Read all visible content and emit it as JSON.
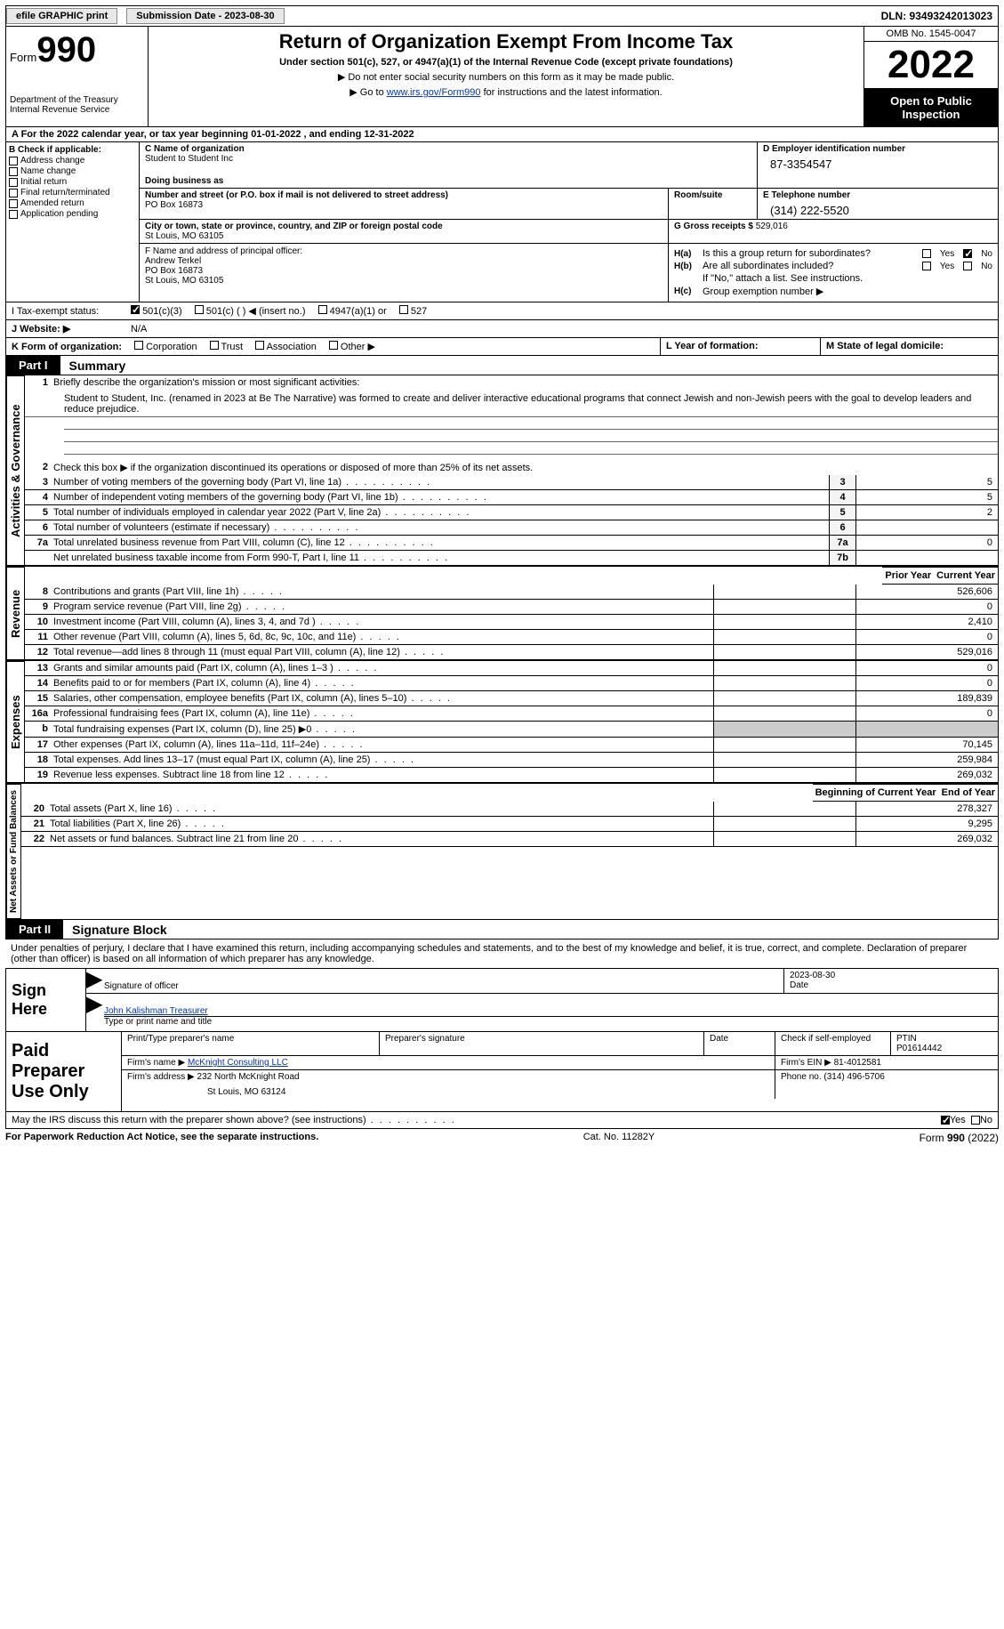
{
  "topbar": {
    "efile": "efile GRAPHIC print",
    "subdate_lbl": "Submission Date - 2023-08-30",
    "dln": "DLN: 93493242013023"
  },
  "header": {
    "form_prefix": "Form",
    "form_num": "990",
    "dept": "Department of the Treasury",
    "irs": "Internal Revenue Service",
    "title": "Return of Organization Exempt From Income Tax",
    "subtitle": "Under section 501(c), 527, or 4947(a)(1) of the Internal Revenue Code (except private foundations)",
    "note1": "▶ Do not enter social security numbers on this form as it may be made public.",
    "note2_pre": "▶ Go to ",
    "note2_link": "www.irs.gov/Form990",
    "note2_post": " for instructions and the latest information.",
    "omb": "OMB No. 1545-0047",
    "year": "2022",
    "open": "Open to Public Inspection"
  },
  "taxyear": "A For the 2022 calendar year, or tax year beginning 01-01-2022    , and ending 12-31-2022",
  "b": {
    "hdr": "B Check if applicable:",
    "items": [
      "Address change",
      "Name change",
      "Initial return",
      "Final return/terminated",
      "Amended return",
      "Application pending"
    ]
  },
  "c": {
    "name_lbl": "C Name of organization",
    "name": "Student to Student Inc",
    "dba_lbl": "Doing business as",
    "addr_lbl": "Number and street (or P.O. box if mail is not delivered to street address)",
    "addr": "PO Box 16873",
    "room_lbl": "Room/suite",
    "city_lbl": "City or town, state or province, country, and ZIP or foreign postal code",
    "city": "St Louis, MO  63105"
  },
  "d": {
    "lbl": "D Employer identification number",
    "val": "87-3354547"
  },
  "e": {
    "lbl": "E Telephone number",
    "val": "(314) 222-5520"
  },
  "g": {
    "lbl": "G Gross receipts $",
    "val": "529,016"
  },
  "f": {
    "lbl": "F Name and address of principal officer:",
    "name": "Andrew Terkel",
    "addr1": "PO Box 16873",
    "addr2": "St Louis, MO  63105"
  },
  "h": {
    "a_lbl": "H(a)",
    "a_txt": "Is this a group return for subordinates?",
    "b_lbl": "H(b)",
    "b_txt": "Are all subordinates included?",
    "b_note": "If \"No,\" attach a list. See instructions.",
    "c_lbl": "H(c)",
    "c_txt": "Group exemption number ▶",
    "yes": "Yes",
    "no": "No"
  },
  "i": {
    "lbl": "I  Tax-exempt status:",
    "opts": [
      "501(c)(3)",
      "501(c) (  ) ◀ (insert no.)",
      "4947(a)(1) or",
      "527"
    ]
  },
  "j": {
    "lbl": "J  Website: ▶",
    "val": "N/A"
  },
  "k": {
    "lbl": "K Form of organization:",
    "opts": [
      "Corporation",
      "Trust",
      "Association",
      "Other ▶"
    ]
  },
  "l": {
    "lbl": "L Year of formation:"
  },
  "m": {
    "lbl": "M State of legal domicile:"
  },
  "part1": {
    "hdr": "Part I",
    "title": "Summary",
    "line1_lbl": "Briefly describe the organization's mission or most significant activities:",
    "line1_txt": "Student to Student, Inc. (renamed in 2023 at Be The Narrative) was formed to create and deliver interactive educational programs that connect Jewish and non-Jewish peers with the goal to develop leaders and reduce prejudice.",
    "line2": "Check this box ▶           if the organization discontinued its operations or disposed of more than 25% of its net assets.",
    "lines_top": [
      {
        "n": "3",
        "d": "Number of voting members of the governing body (Part VI, line 1a)",
        "box": "3",
        "v": "5"
      },
      {
        "n": "4",
        "d": "Number of independent voting members of the governing body (Part VI, line 1b)",
        "box": "4",
        "v": "5"
      },
      {
        "n": "5",
        "d": "Total number of individuals employed in calendar year 2022 (Part V, line 2a)",
        "box": "5",
        "v": "2"
      },
      {
        "n": "6",
        "d": "Total number of volunteers (estimate if necessary)",
        "box": "6",
        "v": ""
      },
      {
        "n": "7a",
        "d": "Total unrelated business revenue from Part VIII, column (C), line 12",
        "box": "7a",
        "v": "0"
      },
      {
        "n": "",
        "d": "Net unrelated business taxable income from Form 990-T, Part I, line 11",
        "box": "7b",
        "v": ""
      }
    ],
    "prior": "Prior Year",
    "current": "Current Year",
    "revenue": [
      {
        "n": "8",
        "d": "Contributions and grants (Part VIII, line 1h)",
        "v2": "526,606"
      },
      {
        "n": "9",
        "d": "Program service revenue (Part VIII, line 2g)",
        "v2": "0"
      },
      {
        "n": "10",
        "d": "Investment income (Part VIII, column (A), lines 3, 4, and 7d )",
        "v2": "2,410"
      },
      {
        "n": "11",
        "d": "Other revenue (Part VIII, column (A), lines 5, 6d, 8c, 9c, 10c, and 11e)",
        "v2": "0"
      },
      {
        "n": "12",
        "d": "Total revenue—add lines 8 through 11 (must equal Part VIII, column (A), line 12)",
        "v2": "529,016"
      }
    ],
    "expenses": [
      {
        "n": "13",
        "d": "Grants and similar amounts paid (Part IX, column (A), lines 1–3 )",
        "v2": "0"
      },
      {
        "n": "14",
        "d": "Benefits paid to or for members (Part IX, column (A), line 4)",
        "v2": "0"
      },
      {
        "n": "15",
        "d": "Salaries, other compensation, employee benefits (Part IX, column (A), lines 5–10)",
        "v2": "189,839"
      },
      {
        "n": "16a",
        "d": "Professional fundraising fees (Part IX, column (A), line 11e)",
        "v2": "0"
      },
      {
        "n": "b",
        "d": "Total fundraising expenses (Part IX, column (D), line 25) ▶0",
        "shade": true
      },
      {
        "n": "17",
        "d": "Other expenses (Part IX, column (A), lines 11a–11d, 11f–24e)",
        "v2": "70,145"
      },
      {
        "n": "18",
        "d": "Total expenses. Add lines 13–17 (must equal Part IX, column (A), line 25)",
        "v2": "259,984"
      },
      {
        "n": "19",
        "d": "Revenue less expenses. Subtract line 18 from line 12",
        "v2": "269,032"
      }
    ],
    "boy": "Beginning of Current Year",
    "eoy": "End of Year",
    "netassets": [
      {
        "n": "20",
        "d": "Total assets (Part X, line 16)",
        "v2": "278,327"
      },
      {
        "n": "21",
        "d": "Total liabilities (Part X, line 26)",
        "v2": "9,295"
      },
      {
        "n": "22",
        "d": "Net assets or fund balances. Subtract line 21 from line 20",
        "v2": "269,032"
      }
    ],
    "side1": "Activities & Governance",
    "side2": "Revenue",
    "side3": "Expenses",
    "side4": "Net Assets or Fund Balances"
  },
  "part2": {
    "hdr": "Part II",
    "title": "Signature Block",
    "text": "Under penalties of perjury, I declare that I have examined this return, including accompanying schedules and statements, and to the best of my knowledge and belief, it is true, correct, and complete. Declaration of preparer (other than officer) is based on all information of which preparer has any knowledge.",
    "sign_here": "Sign Here",
    "sig_officer": "Signature of officer",
    "sig_date": "2023-08-30",
    "date_lbl": "Date",
    "sig_name": "John Kalishman  Treasurer",
    "sig_type_lbl": "Type or print name and title",
    "paid_lbl": "Paid Preparer Use Only",
    "prep_name_lbl": "Print/Type preparer's name",
    "prep_sig_lbl": "Preparer's signature",
    "prep_date_lbl": "Date",
    "check_lbl": "Check          if self-employed",
    "ptin_lbl": "PTIN",
    "ptin": "P01614442",
    "firm_name_lbl": "Firm's name    ▶",
    "firm_name": "McKnight Consulting LLC",
    "firm_ein_lbl": "Firm's EIN ▶",
    "firm_ein": "81-4012581",
    "firm_addr_lbl": "Firm's address ▶",
    "firm_addr1": "232 North McKnight Road",
    "firm_addr2": "St Louis, MO  63124",
    "phone_lbl": "Phone no.",
    "phone": "(314) 496-5706"
  },
  "irs_discuss": "May the IRS discuss this return with the preparer shown above? (see instructions)",
  "footer": {
    "left": "For Paperwork Reduction Act Notice, see the separate instructions.",
    "mid": "Cat. No. 11282Y",
    "right": "Form 990 (2022)"
  }
}
